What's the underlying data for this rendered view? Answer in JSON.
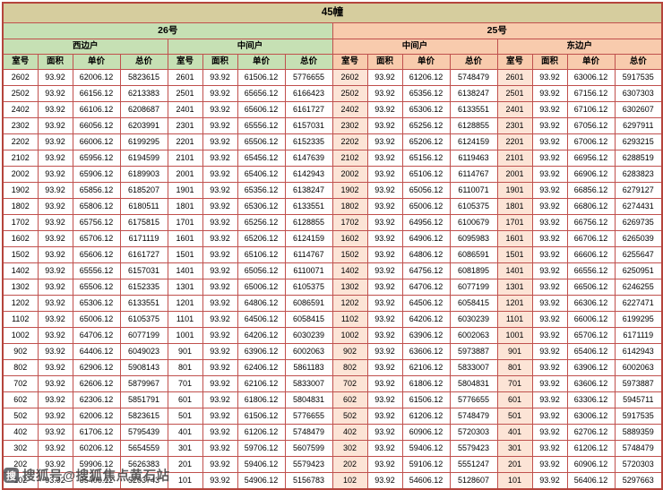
{
  "table": {
    "title": "45幢",
    "sections": [
      {
        "label": "26号"
      },
      {
        "label": "25号"
      }
    ],
    "unit_groups": [
      {
        "label": "西边户",
        "section": "26号"
      },
      {
        "label": "中间户",
        "section": "26号"
      },
      {
        "label": "中间户",
        "section": "25号"
      },
      {
        "label": "东边户",
        "section": "25号"
      }
    ],
    "column_headers": [
      "室号",
      "面积",
      "单价",
      "总价"
    ],
    "area_value": "93.92",
    "rows": [
      [
        "2602",
        "93.92",
        "62006.12",
        "5823615",
        "2601",
        "93.92",
        "61506.12",
        "5776655",
        "2602",
        "93.92",
        "61206.12",
        "5748479",
        "2601",
        "93.92",
        "63006.12",
        "5917535"
      ],
      [
        "2502",
        "93.92",
        "66156.12",
        "6213383",
        "2501",
        "93.92",
        "65656.12",
        "6166423",
        "2502",
        "93.92",
        "65356.12",
        "6138247",
        "2501",
        "93.92",
        "67156.12",
        "6307303"
      ],
      [
        "2402",
        "93.92",
        "66106.12",
        "6208687",
        "2401",
        "93.92",
        "65606.12",
        "6161727",
        "2402",
        "93.92",
        "65306.12",
        "6133551",
        "2401",
        "93.92",
        "67106.12",
        "6302607"
      ],
      [
        "2302",
        "93.92",
        "66056.12",
        "6203991",
        "2301",
        "93.92",
        "65556.12",
        "6157031",
        "2302",
        "93.92",
        "65256.12",
        "6128855",
        "2301",
        "93.92",
        "67056.12",
        "6297911"
      ],
      [
        "2202",
        "93.92",
        "66006.12",
        "6199295",
        "2201",
        "93.92",
        "65506.12",
        "6152335",
        "2202",
        "93.92",
        "65206.12",
        "6124159",
        "2201",
        "93.92",
        "67006.12",
        "6293215"
      ],
      [
        "2102",
        "93.92",
        "65956.12",
        "6194599",
        "2101",
        "93.92",
        "65456.12",
        "6147639",
        "2102",
        "93.92",
        "65156.12",
        "6119463",
        "2101",
        "93.92",
        "66956.12",
        "6288519"
      ],
      [
        "2002",
        "93.92",
        "65906.12",
        "6189903",
        "2001",
        "93.92",
        "65406.12",
        "6142943",
        "2002",
        "93.92",
        "65106.12",
        "6114767",
        "2001",
        "93.92",
        "66906.12",
        "6283823"
      ],
      [
        "1902",
        "93.92",
        "65856.12",
        "6185207",
        "1901",
        "93.92",
        "65356.12",
        "6138247",
        "1902",
        "93.92",
        "65056.12",
        "6110071",
        "1901",
        "93.92",
        "66856.12",
        "6279127"
      ],
      [
        "1802",
        "93.92",
        "65806.12",
        "6180511",
        "1801",
        "93.92",
        "65306.12",
        "6133551",
        "1802",
        "93.92",
        "65006.12",
        "6105375",
        "1801",
        "93.92",
        "66806.12",
        "6274431"
      ],
      [
        "1702",
        "93.92",
        "65756.12",
        "6175815",
        "1701",
        "93.92",
        "65256.12",
        "6128855",
        "1702",
        "93.92",
        "64956.12",
        "6100679",
        "1701",
        "93.92",
        "66756.12",
        "6269735"
      ],
      [
        "1602",
        "93.92",
        "65706.12",
        "6171119",
        "1601",
        "93.92",
        "65206.12",
        "6124159",
        "1602",
        "93.92",
        "64906.12",
        "6095983",
        "1601",
        "93.92",
        "66706.12",
        "6265039"
      ],
      [
        "1502",
        "93.92",
        "65606.12",
        "6161727",
        "1501",
        "93.92",
        "65106.12",
        "6114767",
        "1502",
        "93.92",
        "64806.12",
        "6086591",
        "1501",
        "93.92",
        "66606.12",
        "6255647"
      ],
      [
        "1402",
        "93.92",
        "65556.12",
        "6157031",
        "1401",
        "93.92",
        "65056.12",
        "6110071",
        "1402",
        "93.92",
        "64756.12",
        "6081895",
        "1401",
        "93.92",
        "66556.12",
        "6250951"
      ],
      [
        "1302",
        "93.92",
        "65506.12",
        "6152335",
        "1301",
        "93.92",
        "65006.12",
        "6105375",
        "1302",
        "93.92",
        "64706.12",
        "6077199",
        "1301",
        "93.92",
        "66506.12",
        "6246255"
      ],
      [
        "1202",
        "93.92",
        "65306.12",
        "6133551",
        "1201",
        "93.92",
        "64806.12",
        "6086591",
        "1202",
        "93.92",
        "64506.12",
        "6058415",
        "1201",
        "93.92",
        "66306.12",
        "6227471"
      ],
      [
        "1102",
        "93.92",
        "65006.12",
        "6105375",
        "1101",
        "93.92",
        "64506.12",
        "6058415",
        "1102",
        "93.92",
        "64206.12",
        "6030239",
        "1101",
        "93.92",
        "66006.12",
        "6199295"
      ],
      [
        "1002",
        "93.92",
        "64706.12",
        "6077199",
        "1001",
        "93.92",
        "64206.12",
        "6030239",
        "1002",
        "93.92",
        "63906.12",
        "6002063",
        "1001",
        "93.92",
        "65706.12",
        "6171119"
      ],
      [
        "902",
        "93.92",
        "64406.12",
        "6049023",
        "901",
        "93.92",
        "63906.12",
        "6002063",
        "902",
        "93.92",
        "63606.12",
        "5973887",
        "901",
        "93.92",
        "65406.12",
        "6142943"
      ],
      [
        "802",
        "93.92",
        "62906.12",
        "5908143",
        "801",
        "93.92",
        "62406.12",
        "5861183",
        "802",
        "93.92",
        "62106.12",
        "5833007",
        "801",
        "93.92",
        "63906.12",
        "6002063"
      ],
      [
        "702",
        "93.92",
        "62606.12",
        "5879967",
        "701",
        "93.92",
        "62106.12",
        "5833007",
        "702",
        "93.92",
        "61806.12",
        "5804831",
        "701",
        "93.92",
        "63606.12",
        "5973887"
      ],
      [
        "602",
        "93.92",
        "62306.12",
        "5851791",
        "601",
        "93.92",
        "61806.12",
        "5804831",
        "602",
        "93.92",
        "61506.12",
        "5776655",
        "601",
        "93.92",
        "63306.12",
        "5945711"
      ],
      [
        "502",
        "93.92",
        "62006.12",
        "5823615",
        "501",
        "93.92",
        "61506.12",
        "5776655",
        "502",
        "93.92",
        "61206.12",
        "5748479",
        "501",
        "93.92",
        "63006.12",
        "5917535"
      ],
      [
        "402",
        "93.92",
        "61706.12",
        "5795439",
        "401",
        "93.92",
        "61206.12",
        "5748479",
        "402",
        "93.92",
        "60906.12",
        "5720303",
        "401",
        "93.92",
        "62706.12",
        "5889359"
      ],
      [
        "302",
        "93.92",
        "60206.12",
        "5654559",
        "301",
        "93.92",
        "59706.12",
        "5607599",
        "302",
        "93.92",
        "59406.12",
        "5579423",
        "301",
        "93.92",
        "61206.12",
        "5748479"
      ],
      [
        "202",
        "93.92",
        "59906.12",
        "5626383",
        "201",
        "93.92",
        "59406.12",
        "5579423",
        "202",
        "93.92",
        "59106.12",
        "5551247",
        "201",
        "93.92",
        "60906.12",
        "5720303"
      ],
      [
        "102",
        "93.92",
        "55406.12",
        "5203743",
        "101",
        "93.92",
        "54906.12",
        "5156783",
        "102",
        "93.92",
        "54606.12",
        "5128607",
        "101",
        "93.92",
        "56406.12",
        "5297663"
      ]
    ]
  },
  "watermark": {
    "logo_glyph": "搜",
    "text": "搜狐号@搜狐焦点黄石站"
  },
  "colors": {
    "grid_red": "#c0504d",
    "title_tan": "#d6cd9e",
    "section_green": "#c6e0b4",
    "section_orange": "#f8cbad",
    "room_col_tint": "#fce4d6"
  }
}
